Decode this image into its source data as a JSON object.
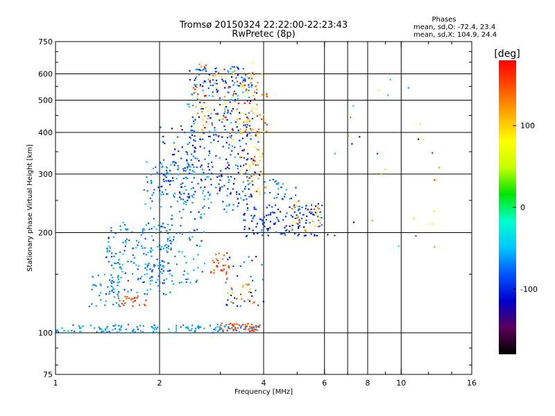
{
  "title_line1": "Tromsø 20150324 22:22:00-22:23:43",
  "title_line2": "RwPretec (8p)",
  "phases_box": {
    "heading": "Phases",
    "line_o": "mean, sd,O: -72.4, 23.4",
    "line_x": "mean, sd,X: 104.9, 24.4"
  },
  "chart_data": {
    "type": "scatter",
    "xlabel": "Frequency [MHz]",
    "ylabel": "Stationary phase Virtual Height [km]",
    "x_scale": "log",
    "y_scale": "log",
    "xlim": [
      1,
      16
    ],
    "ylim": [
      75,
      750
    ],
    "x_ticks": [
      1,
      2,
      4,
      6,
      8,
      10,
      16
    ],
    "x_minor_ticks": [
      3,
      5,
      7,
      9,
      12,
      14
    ],
    "y_ticks": [
      75,
      100,
      200,
      300,
      400,
      500,
      600,
      750
    ],
    "y_minor_ticks": [
      80,
      90,
      150,
      250,
      350,
      450,
      550,
      650,
      700
    ],
    "gridlines_x": [
      2,
      4,
      6,
      7,
      8,
      10
    ],
    "gridlines_y": [
      100,
      200,
      300,
      400,
      500,
      600
    ],
    "grid": true,
    "colorbar": {
      "label": "[deg]",
      "range": [
        -180,
        180
      ],
      "ticks": [
        100,
        0,
        -100
      ],
      "colors": [
        "#000000",
        "#5a005a",
        "#0000cd",
        "#0055ff",
        "#00c8ff",
        "#00ffc8",
        "#00e600",
        "#c8ff00",
        "#ffff00",
        "#ffaa00",
        "#ff5000",
        "#ff0000"
      ]
    },
    "clusters": [
      {
        "x": [
          1.0,
          3.9
        ],
        "y": [
          100,
          106
        ],
        "phase": [
          -80,
          -45
        ],
        "n": 150
      },
      {
        "x": [
          3.0,
          3.9
        ],
        "y": [
          101,
          107
        ],
        "phase": [
          130,
          175
        ],
        "n": 45
      },
      {
        "x": [
          1.25,
          1.55
        ],
        "y": [
          120,
          150
        ],
        "phase": [
          -85,
          -50
        ],
        "n": 40
      },
      {
        "x": [
          1.5,
          1.85
        ],
        "y": [
          120,
          130
        ],
        "phase": [
          140,
          175
        ],
        "n": 25
      },
      {
        "x": [
          1.4,
          2.2
        ],
        "y": [
          130,
          215
        ],
        "phase": [
          -95,
          -45
        ],
        "n": 170
      },
      {
        "x": [
          1.8,
          2.7
        ],
        "y": [
          140,
          330
        ],
        "phase": [
          -90,
          -40
        ],
        "n": 180
      },
      {
        "x": [
          2.0,
          2.6
        ],
        "y": [
          250,
          420
        ],
        "phase": [
          -120,
          -60
        ],
        "n": 90
      },
      {
        "x": [
          2.4,
          3.7
        ],
        "y": [
          230,
          640
        ],
        "phase": [
          -110,
          -40
        ],
        "n": 240
      },
      {
        "x": [
          2.6,
          3.9
        ],
        "y": [
          250,
          600
        ],
        "phase": [
          -130,
          -80
        ],
        "n": 110
      },
      {
        "x": [
          2.5,
          3.9
        ],
        "y": [
          380,
          650
        ],
        "phase": [
          60,
          180
        ],
        "n": 90
      },
      {
        "x": [
          3.4,
          4.1
        ],
        "y": [
          260,
          600
        ],
        "phase": [
          60,
          175
        ],
        "n": 90
      },
      {
        "x": [
          2.8,
          3.2
        ],
        "y": [
          150,
          175
        ],
        "phase": [
          130,
          175
        ],
        "n": 30
      },
      {
        "x": [
          3.1,
          3.8
        ],
        "y": [
          120,
          150
        ],
        "phase": [
          100,
          175
        ],
        "n": 20
      },
      {
        "x": [
          3.1,
          4.0
        ],
        "y": [
          120,
          170
        ],
        "phase": [
          -120,
          -60
        ],
        "n": 30
      },
      {
        "x": [
          3.5,
          5.9
        ],
        "y": [
          195,
          245
        ],
        "phase": [
          -120,
          -70
        ],
        "n": 140
      },
      {
        "x": [
          4.8,
          5.9
        ],
        "y": [
          200,
          250
        ],
        "phase": [
          60,
          170
        ],
        "n": 30
      },
      {
        "x": [
          4.0,
          5.0
        ],
        "y": [
          250,
          290
        ],
        "phase": [
          -110,
          -40
        ],
        "n": 25
      },
      {
        "x": [
          6.0,
          13.0
        ],
        "y": [
          180,
          630
        ],
        "phase": [
          -180,
          180
        ],
        "n": 30
      }
    ]
  }
}
